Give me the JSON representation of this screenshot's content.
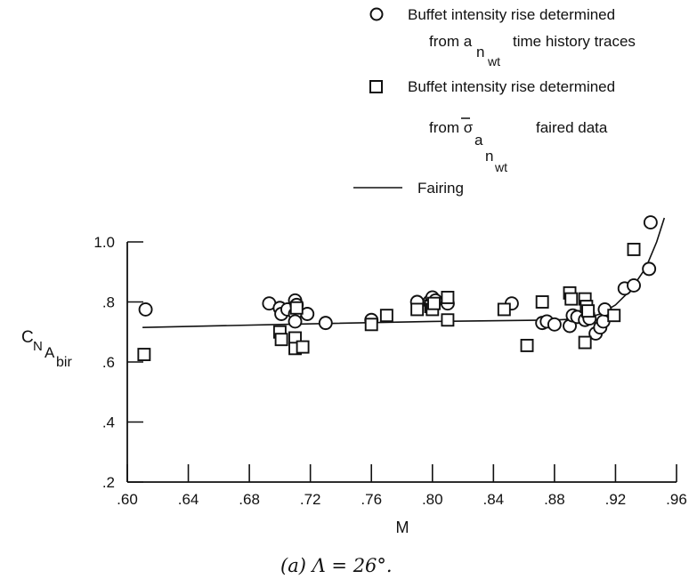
{
  "chart_data": {
    "type": "scatter",
    "caption": "(a)  Λ = 26°.",
    "xlabel": "M",
    "ylabel": {
      "main": "C",
      "sub1": "N",
      "sub2": "A",
      "sub3": "bir"
    },
    "xlim": [
      0.6,
      0.96
    ],
    "ylim": [
      0.2,
      1.0
    ],
    "xticks": [
      0.6,
      0.64,
      0.68,
      0.72,
      0.76,
      0.8,
      0.84,
      0.88,
      0.92,
      0.96
    ],
    "xtick_labels": [
      ".60",
      ".64",
      ".68",
      ".72",
      ".76",
      ".80",
      ".84",
      ".88",
      ".92",
      ".96"
    ],
    "yticks": [
      0.2,
      0.4,
      0.6,
      0.8,
      1.0
    ],
    "ytick_labels": [
      ".2",
      ".4",
      ".6",
      ".8",
      "1.0"
    ],
    "grid": false,
    "legend_placement": "top-right",
    "legend": [
      {
        "marker": "circle",
        "lines": [
          "Buffet intensity rise determined",
          "from a",
          "n",
          "wt",
          "time history traces"
        ]
      },
      {
        "marker": "square",
        "lines": [
          "Buffet intensity rise determined",
          "from σ",
          "a",
          "n",
          "wt",
          "faired data"
        ]
      },
      {
        "marker": "line",
        "lines": [
          "Fairing"
        ]
      }
    ],
    "series": [
      {
        "marker": "circle",
        "points": [
          [
            0.612,
            0.775
          ],
          [
            0.693,
            0.795
          ],
          [
            0.7,
            0.78
          ],
          [
            0.701,
            0.76
          ],
          [
            0.705,
            0.775
          ],
          [
            0.71,
            0.805
          ],
          [
            0.711,
            0.79
          ],
          [
            0.71,
            0.76
          ],
          [
            0.71,
            0.735
          ],
          [
            0.718,
            0.76
          ],
          [
            0.73,
            0.73
          ],
          [
            0.76,
            0.74
          ],
          [
            0.79,
            0.8
          ],
          [
            0.798,
            0.8
          ],
          [
            0.799,
            0.795
          ],
          [
            0.8,
            0.815
          ],
          [
            0.802,
            0.805
          ],
          [
            0.81,
            0.795
          ],
          [
            0.852,
            0.795
          ],
          [
            0.872,
            0.73
          ],
          [
            0.875,
            0.735
          ],
          [
            0.88,
            0.725
          ],
          [
            0.89,
            0.72
          ],
          [
            0.892,
            0.755
          ],
          [
            0.895,
            0.75
          ],
          [
            0.9,
            0.74
          ],
          [
            0.902,
            0.76
          ],
          [
            0.903,
            0.745
          ],
          [
            0.907,
            0.695
          ],
          [
            0.91,
            0.715
          ],
          [
            0.912,
            0.735
          ],
          [
            0.913,
            0.775
          ],
          [
            0.926,
            0.845
          ],
          [
            0.932,
            0.855
          ],
          [
            0.942,
            0.91
          ],
          [
            0.943,
            1.065
          ]
        ]
      },
      {
        "marker": "square",
        "points": [
          [
            0.611,
            0.625
          ],
          [
            0.7,
            0.7
          ],
          [
            0.701,
            0.675
          ],
          [
            0.71,
            0.68
          ],
          [
            0.71,
            0.645
          ],
          [
            0.711,
            0.78
          ],
          [
            0.715,
            0.65
          ],
          [
            0.76,
            0.725
          ],
          [
            0.77,
            0.755
          ],
          [
            0.79,
            0.775
          ],
          [
            0.799,
            0.785
          ],
          [
            0.8,
            0.775
          ],
          [
            0.801,
            0.795
          ],
          [
            0.81,
            0.815
          ],
          [
            0.81,
            0.74
          ],
          [
            0.847,
            0.775
          ],
          [
            0.862,
            0.655
          ],
          [
            0.872,
            0.8
          ],
          [
            0.89,
            0.83
          ],
          [
            0.891,
            0.81
          ],
          [
            0.9,
            0.81
          ],
          [
            0.901,
            0.785
          ],
          [
            0.902,
            0.77
          ],
          [
            0.9,
            0.665
          ],
          [
            0.919,
            0.755
          ],
          [
            0.932,
            0.975
          ]
        ]
      },
      {
        "marker": "line",
        "name": "Fairing",
        "points": [
          [
            0.61,
            0.715
          ],
          [
            0.7,
            0.725
          ],
          [
            0.8,
            0.735
          ],
          [
            0.88,
            0.74
          ],
          [
            0.9,
            0.745
          ],
          [
            0.91,
            0.76
          ],
          [
            0.92,
            0.79
          ],
          [
            0.93,
            0.84
          ],
          [
            0.94,
            0.915
          ],
          [
            0.947,
            1.0
          ],
          [
            0.952,
            1.08
          ]
        ]
      }
    ]
  }
}
